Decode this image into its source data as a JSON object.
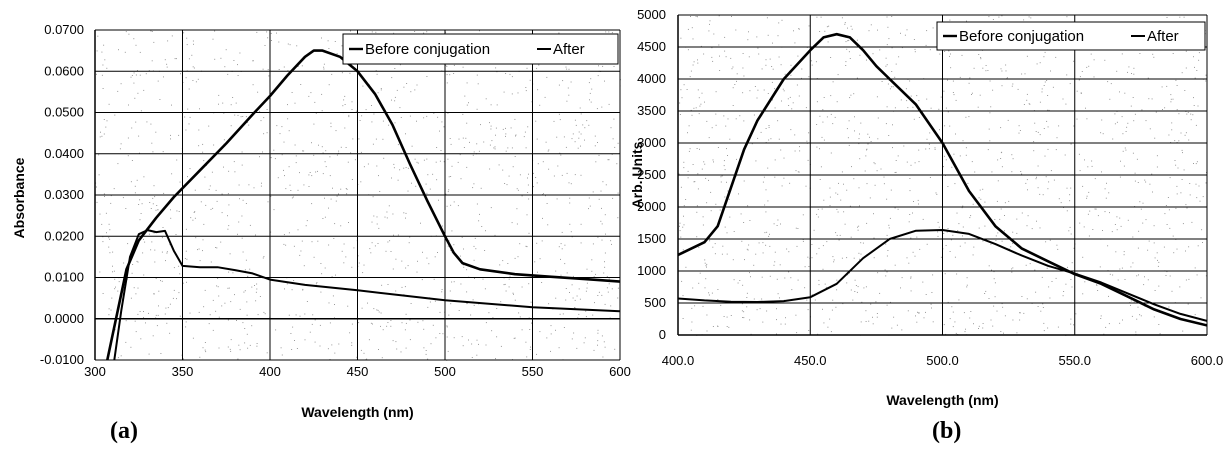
{
  "chart_data": [
    {
      "type": "line",
      "panel_label": "(a)",
      "xlabel": "Wavelength (nm)",
      "ylabel": "Absorbance",
      "xlim": [
        300,
        600
      ],
      "ylim": [
        -0.01,
        0.07
      ],
      "x_ticks": [
        "300",
        "350",
        "400",
        "450",
        "500",
        "550",
        "600"
      ],
      "y_ticks": [
        "-0.0100",
        "0.0000",
        "0.0100",
        "0.0200",
        "0.0300",
        "0.0400",
        "0.0500",
        "0.0600",
        "0.0700"
      ],
      "grid": true,
      "legend_position": "top-right",
      "series": [
        {
          "name": "Before conjugation",
          "x": [
            307,
            312,
            318,
            325,
            335,
            345,
            360,
            375,
            390,
            400,
            410,
            420,
            425,
            430,
            440,
            450,
            460,
            470,
            480,
            490,
            500,
            505,
            510,
            520,
            540,
            560,
            580,
            600
          ],
          "y": [
            -0.01,
            0.0,
            0.012,
            0.019,
            0.0245,
            0.0295,
            0.036,
            0.0425,
            0.0495,
            0.054,
            0.059,
            0.0635,
            0.065,
            0.065,
            0.0635,
            0.06,
            0.0545,
            0.047,
            0.0375,
            0.0285,
            0.02,
            0.016,
            0.0135,
            0.012,
            0.0108,
            0.0102,
            0.0096,
            0.009
          ]
        },
        {
          "name": "After",
          "x": [
            311,
            315,
            320,
            325,
            330,
            335,
            340,
            345,
            350,
            360,
            370,
            380,
            390,
            400,
            420,
            450,
            500,
            550,
            600
          ],
          "y": [
            -0.01,
            0.002,
            0.015,
            0.0205,
            0.0215,
            0.021,
            0.0213,
            0.0165,
            0.0128,
            0.0125,
            0.0125,
            0.0118,
            0.011,
            0.0095,
            0.0082,
            0.0069,
            0.0045,
            0.0028,
            0.0018
          ]
        }
      ]
    },
    {
      "type": "line",
      "panel_label": "(b)",
      "xlabel": "Wavelength (nm)",
      "ylabel": "Arb. Units",
      "xlim": [
        400,
        600
      ],
      "ylim": [
        0,
        5000
      ],
      "x_ticks": [
        "400.0",
        "450.0",
        "500.0",
        "550.0",
        "600.0"
      ],
      "y_ticks": [
        "0",
        "500",
        "1000",
        "1500",
        "2000",
        "2500",
        "3000",
        "3500",
        "4000",
        "4500",
        "5000"
      ],
      "grid": true,
      "legend_position": "top-right",
      "series": [
        {
          "name": "Before conjugation",
          "x": [
            400,
            410,
            415,
            420,
            425,
            430,
            440,
            450,
            455,
            460,
            465,
            470,
            475,
            480,
            490,
            500,
            510,
            520,
            530,
            540,
            550,
            560,
            570,
            580,
            590,
            600
          ],
          "y": [
            1250,
            1450,
            1700,
            2300,
            2900,
            3350,
            4000,
            4450,
            4650,
            4700,
            4650,
            4450,
            4200,
            4000,
            3600,
            3000,
            2250,
            1700,
            1350,
            1150,
            950,
            800,
            600,
            400,
            250,
            150
          ]
        },
        {
          "name": "After",
          "x": [
            400,
            410,
            420,
            430,
            440,
            450,
            460,
            470,
            480,
            490,
            500,
            510,
            520,
            530,
            540,
            550,
            560,
            570,
            580,
            590,
            600
          ],
          "y": [
            570,
            540,
            520,
            515,
            530,
            590,
            800,
            1200,
            1500,
            1630,
            1640,
            1580,
            1420,
            1240,
            1080,
            960,
            820,
            650,
            480,
            330,
            220
          ]
        }
      ]
    }
  ]
}
